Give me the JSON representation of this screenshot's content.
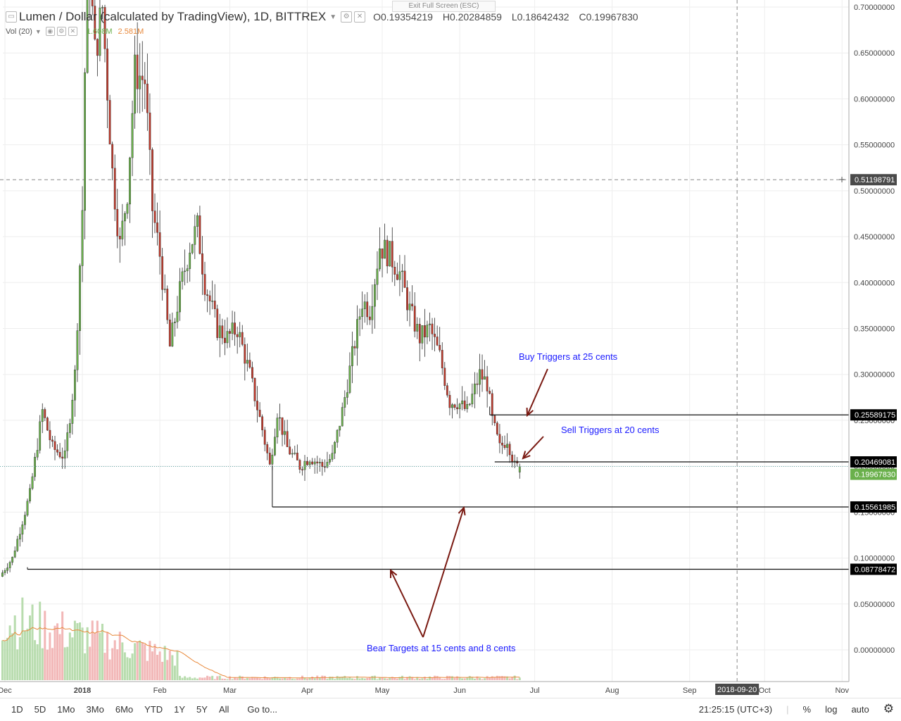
{
  "header": {
    "symbol": "Lumen / Dollar (calculated by TradingView), 1D, BITTREX",
    "open": "O0.19354219",
    "high": "H0.20284859",
    "low": "L0.18642432",
    "close": "C0.19967830",
    "exit_fullscreen": "Exit Full Screen (ESC)"
  },
  "volume": {
    "label": "Vol (20)",
    "value1": "1.608M",
    "value2": "2.581M"
  },
  "colors": {
    "up": "#6ab04c",
    "down": "#c0392b",
    "vol_up": "#b8dcae",
    "vol_down": "#f2b7b7",
    "vol_ma": "#e8893b",
    "annotation_text": "#1a1aff",
    "arrow": "#7a1a12",
    "last_price_badge": "#6ab04c",
    "level_badge": "#000000"
  },
  "chart_data": {
    "type": "candlestick",
    "title": "Lumen / Dollar (calculated by TradingView), 1D, BITTREX",
    "y_ticks": [
      "0.70000000",
      "0.65000000",
      "0.60000000",
      "0.55000000",
      "0.50000000",
      "0.45000000",
      "0.40000000",
      "0.35000000",
      "0.30000000",
      "0.25000000",
      "0.20000000",
      "0.15000000",
      "0.10000000",
      "0.05000000",
      "0.00000000"
    ],
    "y_range": [
      -0.035,
      0.705
    ],
    "x_labels": [
      "Dec",
      "2018",
      "Feb",
      "Mar",
      "Apr",
      "May",
      "Jun",
      "Jul",
      "Aug",
      "Sep",
      "Oct",
      "Nov"
    ],
    "x_highlight": "2018-09-20",
    "crosshair_price": "0.51198791",
    "last_price": "0.19967830",
    "levels": [
      {
        "label": "0.25589175",
        "value": 0.25589175
      },
      {
        "label": "0.20469081",
        "value": 0.20469081
      },
      {
        "label": "0.15561985",
        "value": 0.15561985
      },
      {
        "label": "0.08778472",
        "value": 0.08778472
      }
    ],
    "annotations": [
      {
        "text": "Buy Triggers at 25 cents"
      },
      {
        "text": "Sell Triggers at 20 cents"
      },
      {
        "text": "Bear Targets at 15 cents and 8 cents"
      }
    ],
    "anchors": [
      {
        "date": "2017-11-30",
        "price": 0.08
      },
      {
        "date": "2017-12-05",
        "price": 0.1
      },
      {
        "date": "2017-12-12",
        "price": 0.17
      },
      {
        "date": "2017-12-17",
        "price": 0.26
      },
      {
        "date": "2017-12-21",
        "price": 0.22
      },
      {
        "date": "2017-12-26",
        "price": 0.21
      },
      {
        "date": "2017-12-30",
        "price": 0.3
      },
      {
        "date": "2018-01-02",
        "price": 0.48
      },
      {
        "date": "2018-01-04",
        "price": 0.78
      },
      {
        "date": "2018-01-07",
        "price": 0.65
      },
      {
        "date": "2018-01-10",
        "price": 0.7
      },
      {
        "date": "2018-01-14",
        "price": 0.52
      },
      {
        "date": "2018-01-17",
        "price": 0.44
      },
      {
        "date": "2018-01-20",
        "price": 0.5
      },
      {
        "date": "2018-01-23",
        "price": 0.63
      },
      {
        "date": "2018-01-27",
        "price": 0.62
      },
      {
        "date": "2018-01-30",
        "price": 0.48
      },
      {
        "date": "2018-02-02",
        "price": 0.43
      },
      {
        "date": "2018-02-06",
        "price": 0.33
      },
      {
        "date": "2018-02-10",
        "price": 0.39
      },
      {
        "date": "2018-02-14",
        "price": 0.44
      },
      {
        "date": "2018-02-17",
        "price": 0.46
      },
      {
        "date": "2018-02-20",
        "price": 0.4
      },
      {
        "date": "2018-02-25",
        "price": 0.35
      },
      {
        "date": "2018-03-01",
        "price": 0.34
      },
      {
        "date": "2018-03-05",
        "price": 0.35
      },
      {
        "date": "2018-03-10",
        "price": 0.3
      },
      {
        "date": "2018-03-15",
        "price": 0.24
      },
      {
        "date": "2018-03-18",
        "price": 0.2
      },
      {
        "date": "2018-03-21",
        "price": 0.26
      },
      {
        "date": "2018-03-25",
        "price": 0.22
      },
      {
        "date": "2018-03-30",
        "price": 0.2
      },
      {
        "date": "2018-04-03",
        "price": 0.21
      },
      {
        "date": "2018-04-08",
        "price": 0.2
      },
      {
        "date": "2018-04-12",
        "price": 0.21
      },
      {
        "date": "2018-04-16",
        "price": 0.26
      },
      {
        "date": "2018-04-20",
        "price": 0.32
      },
      {
        "date": "2018-04-24",
        "price": 0.38
      },
      {
        "date": "2018-04-27",
        "price": 0.37
      },
      {
        "date": "2018-05-01",
        "price": 0.44
      },
      {
        "date": "2018-05-05",
        "price": 0.43
      },
      {
        "date": "2018-05-09",
        "price": 0.41
      },
      {
        "date": "2018-05-13",
        "price": 0.37
      },
      {
        "date": "2018-05-17",
        "price": 0.34
      },
      {
        "date": "2018-05-21",
        "price": 0.35
      },
      {
        "date": "2018-05-25",
        "price": 0.32
      },
      {
        "date": "2018-05-29",
        "price": 0.27
      },
      {
        "date": "2018-06-01",
        "price": 0.27
      },
      {
        "date": "2018-06-05",
        "price": 0.26
      },
      {
        "date": "2018-06-10",
        "price": 0.3
      },
      {
        "date": "2018-06-13",
        "price": 0.29
      },
      {
        "date": "2018-06-15",
        "price": 0.25
      },
      {
        "date": "2018-06-18",
        "price": 0.22
      },
      {
        "date": "2018-06-21",
        "price": 0.23
      },
      {
        "date": "2018-06-24",
        "price": 0.2
      },
      {
        "date": "2018-06-25",
        "price": 0.1997
      }
    ]
  },
  "bottom_toolbar": {
    "timeframes": [
      "1D",
      "5D",
      "1Mo",
      "3Mo",
      "6Mo",
      "YTD",
      "1Y",
      "5Y",
      "All"
    ],
    "goto": "Go to...",
    "clock": "21:25:15 (UTC+3)",
    "percent": "%",
    "log": "log",
    "auto": "auto"
  }
}
